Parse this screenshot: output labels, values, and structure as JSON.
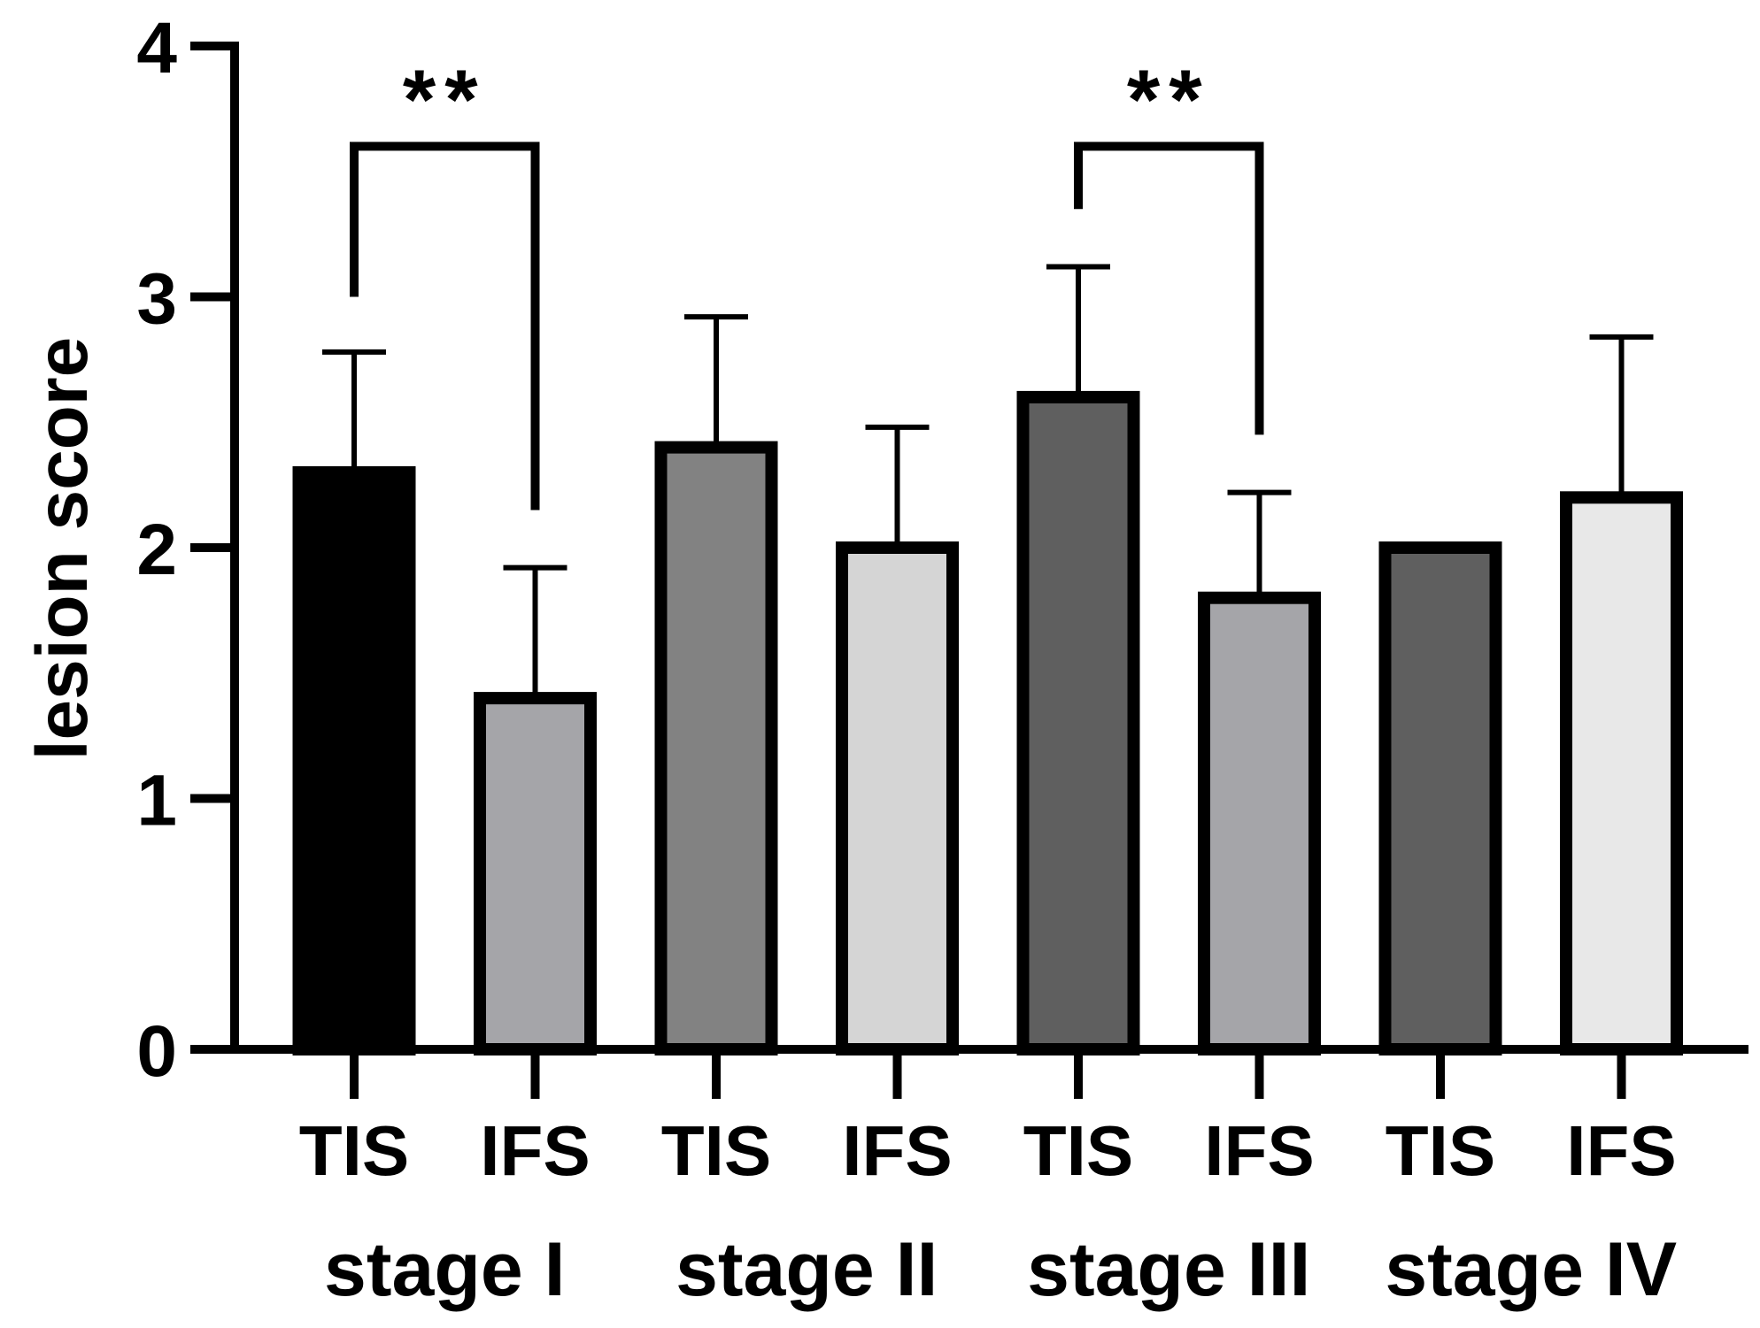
{
  "chart_data": {
    "type": "bar",
    "ylabel": "lesion score",
    "xlabel": "",
    "ylim": [
      0,
      4
    ],
    "yticks": [
      0,
      1,
      2,
      3,
      4
    ],
    "grid": false,
    "groups": [
      {
        "label": "stage I",
        "bars": [
          {
            "label": "TIS",
            "value": 2.3,
            "error": 0.48,
            "color": "#000000"
          },
          {
            "label": "IFS",
            "value": 1.4,
            "error": 0.52,
            "color": "#a5a5a9"
          }
        ]
      },
      {
        "label": "stage II",
        "bars": [
          {
            "label": "TIS",
            "value": 2.4,
            "error": 0.52,
            "color": "#828282"
          },
          {
            "label": "IFS",
            "value": 2.0,
            "error": 0.48,
            "color": "#d5d5d5"
          }
        ]
      },
      {
        "label": "stage III",
        "bars": [
          {
            "label": "TIS",
            "value": 2.6,
            "error": 0.52,
            "color": "#5f5f5f"
          },
          {
            "label": "IFS",
            "value": 1.8,
            "error": 0.42,
            "color": "#a5a5a9"
          }
        ]
      },
      {
        "label": "stage IV",
        "bars": [
          {
            "label": "TIS",
            "value": 2.0,
            "error": 0,
            "color": "#5f5f5f"
          },
          {
            "label": "IFS",
            "value": 2.2,
            "error": 0.64,
            "color": "#e8e8e8"
          }
        ]
      }
    ],
    "annotations": [
      {
        "text": "**",
        "group": 0,
        "from_bar": 0,
        "to_bar": 1,
        "bracket_y": 3.6,
        "left_end_y": 3.0,
        "right_end_y": 2.15
      },
      {
        "text": "**",
        "group": 2,
        "from_bar": 0,
        "to_bar": 1,
        "bracket_y": 3.6,
        "left_end_y": 3.35,
        "right_end_y": 2.45
      }
    ]
  }
}
